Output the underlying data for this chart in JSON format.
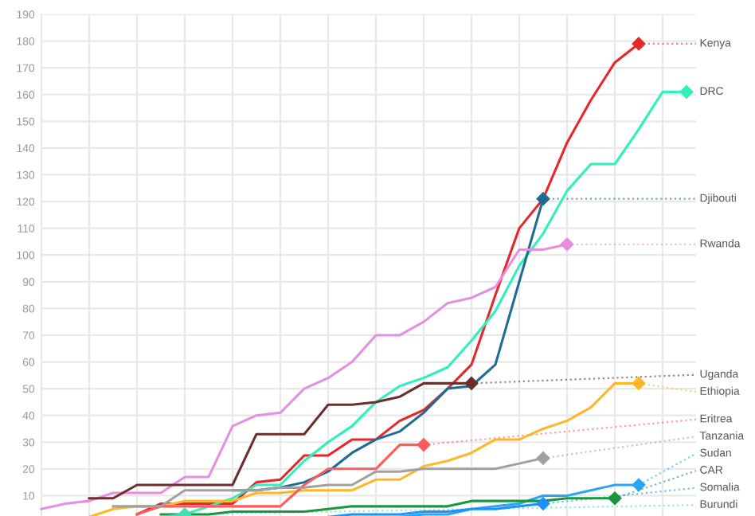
{
  "chart_data": {
    "type": "line",
    "categories": [
      null,
      null,
      null,
      null,
      null,
      null,
      null,
      null,
      null,
      null,
      null,
      null,
      null,
      null,
      null,
      null,
      null,
      null,
      null,
      null,
      null,
      null,
      null,
      null,
      null,
      null,
      null,
      null
    ],
    "ylim": [
      0,
      190
    ],
    "yticks": [
      10,
      20,
      30,
      40,
      50,
      60,
      70,
      80,
      90,
      100,
      110,
      120,
      130,
      140,
      150,
      160,
      170,
      180,
      190
    ],
    "grid": true,
    "legend": "right",
    "line_style": "solid",
    "series": [
      {
        "name": "Kenya",
        "color": "#e8262a",
        "values": [
          null,
          null,
          null,
          null,
          3,
          7,
          7,
          7,
          7,
          15,
          16,
          25,
          25,
          31,
          31,
          38,
          42,
          50,
          59,
          85,
          110,
          121,
          142,
          158,
          172,
          179,
          null,
          null
        ]
      },
      {
        "name": "DRC",
        "color": "#2ef0bd",
        "values": [
          null,
          null,
          null,
          null,
          null,
          null,
          3,
          6,
          9,
          14,
          14,
          23,
          30,
          36,
          45,
          51,
          54,
          58,
          68,
          79,
          96,
          108,
          124,
          134,
          134,
          147,
          161,
          161
        ]
      },
      {
        "name": "Djibouti",
        "color": "#1f6b94",
        "values": [
          null,
          null,
          null,
          null,
          null,
          null,
          null,
          null,
          12,
          12,
          13,
          15,
          19,
          26,
          31,
          34,
          41,
          50,
          51,
          59,
          90,
          121,
          null,
          null,
          null,
          null,
          null,
          null
        ]
      },
      {
        "name": "Rwanda",
        "color": "#e58fe0",
        "values": [
          5,
          7,
          8,
          11,
          11,
          11,
          17,
          17,
          36,
          40,
          41,
          50,
          54,
          60,
          70,
          70,
          75,
          82,
          84,
          88,
          102,
          102,
          104,
          null,
          null,
          null,
          null,
          null
        ]
      },
      {
        "name": "Uganda",
        "color": "#6b2d2d",
        "values": [
          null,
          null,
          9,
          9,
          14,
          14,
          14,
          14,
          14,
          33,
          33,
          33,
          44,
          44,
          45,
          47,
          52,
          52,
          52,
          null,
          null,
          null,
          null,
          null,
          null,
          null,
          null,
          null
        ]
      },
      {
        "name": "Ethiopia",
        "color": "#ffb627",
        "values": [
          null,
          null,
          2,
          5,
          6,
          6,
          8,
          8,
          8,
          11,
          11,
          12,
          12,
          12,
          16,
          16,
          21,
          23,
          26,
          31,
          31,
          35,
          38,
          43,
          52,
          52,
          null,
          null
        ]
      },
      {
        "name": "Eritrea",
        "color": "#ff5b5b",
        "values": [
          null,
          null,
          null,
          null,
          3,
          6,
          6,
          6,
          6,
          6,
          6,
          14,
          20,
          20,
          20,
          29,
          29,
          null,
          null,
          null,
          null,
          null,
          null,
          null,
          null,
          null,
          null,
          null
        ]
      },
      {
        "name": "Tanzania",
        "color": "#a0a0a0",
        "values": [
          null,
          null,
          null,
          6,
          6,
          6,
          12,
          12,
          12,
          12,
          13,
          13,
          14,
          14,
          19,
          19,
          20,
          20,
          20,
          20,
          22,
          24,
          null,
          null,
          null,
          null,
          null,
          null
        ]
      },
      {
        "name": "Sudan",
        "color": "#2aa5f5",
        "values": [
          null,
          null,
          null,
          null,
          null,
          null,
          null,
          null,
          null,
          null,
          null,
          null,
          null,
          null,
          null,
          2,
          3,
          3,
          5,
          6,
          7,
          10,
          10,
          12,
          14,
          14,
          null,
          null
        ]
      },
      {
        "name": "CAR",
        "color": "#1a9641",
        "values": [
          null,
          null,
          null,
          null,
          null,
          3,
          3,
          3,
          4,
          4,
          4,
          4,
          5,
          6,
          6,
          6,
          6,
          6,
          8,
          8,
          8,
          8,
          9,
          9,
          9,
          null,
          null,
          null
        ]
      },
      {
        "name": "Somalia",
        "color": "#1e90ff",
        "values": [
          null,
          null,
          null,
          null,
          null,
          null,
          null,
          null,
          null,
          null,
          null,
          null,
          2,
          3,
          3,
          3,
          4,
          4,
          5,
          5,
          6,
          7,
          null,
          null,
          null,
          null,
          null,
          null
        ]
      },
      {
        "name": "Burundi",
        "color": "#45e0b0",
        "values": [
          null,
          null,
          null,
          null,
          null,
          2,
          3,
          null,
          null,
          null,
          null,
          null,
          null,
          null,
          null,
          null,
          null,
          null,
          null,
          null,
          null,
          null,
          null,
          null,
          null,
          null,
          null,
          null
        ]
      }
    ]
  }
}
